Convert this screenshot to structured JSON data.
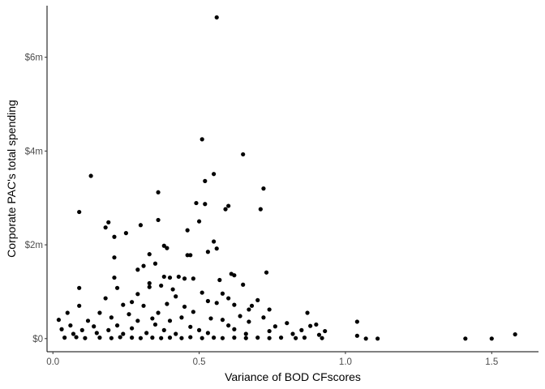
{
  "chart_data": {
    "type": "scatter",
    "title": "",
    "xlabel": "Variance of BOD CFscores",
    "ylabel": "Corporate PAC's total spending",
    "xlim": [
      -0.02,
      1.66
    ],
    "ylim": [
      -0.28,
      7.1
    ],
    "x_ticks": [
      0.0,
      0.5,
      1.0,
      1.5
    ],
    "x_tick_labels": [
      "0.0",
      "0.5",
      "1.0",
      "1.5"
    ],
    "y_ticks": [
      0,
      2,
      4,
      6
    ],
    "y_tick_labels": [
      "$0",
      "$2m",
      "$4m",
      "$6m"
    ],
    "y_unit": "millions of dollars",
    "grid": false,
    "legend": "none",
    "point_color": "#000000",
    "points": [
      [
        0.56,
        6.85
      ],
      [
        0.51,
        4.25
      ],
      [
        0.65,
        3.93
      ],
      [
        0.55,
        3.51
      ],
      [
        0.13,
        3.47
      ],
      [
        0.52,
        3.36
      ],
      [
        0.72,
        3.2
      ],
      [
        0.36,
        3.12
      ],
      [
        0.49,
        2.89
      ],
      [
        0.52,
        2.87
      ],
      [
        0.6,
        2.83
      ],
      [
        0.59,
        2.76
      ],
      [
        0.71,
        2.76
      ],
      [
        0.09,
        2.7
      ],
      [
        0.36,
        2.53
      ],
      [
        0.5,
        2.5
      ],
      [
        0.19,
        2.48
      ],
      [
        0.3,
        2.42
      ],
      [
        0.18,
        2.37
      ],
      [
        0.25,
        2.25
      ],
      [
        0.21,
        2.17
      ],
      [
        0.46,
        2.31
      ],
      [
        0.55,
        2.07
      ],
      [
        0.38,
        1.98
      ],
      [
        0.39,
        1.93
      ],
      [
        0.56,
        1.92
      ],
      [
        0.53,
        1.85
      ],
      [
        0.33,
        1.8
      ],
      [
        0.46,
        1.78
      ],
      [
        0.47,
        1.78
      ],
      [
        0.21,
        1.73
      ],
      [
        0.35,
        1.6
      ],
      [
        0.29,
        1.47
      ],
      [
        0.31,
        1.55
      ],
      [
        0.61,
        1.38
      ],
      [
        0.62,
        1.35
      ],
      [
        0.73,
        1.41
      ],
      [
        0.38,
        1.32
      ],
      [
        0.4,
        1.3
      ],
      [
        0.43,
        1.32
      ],
      [
        0.21,
        1.3
      ],
      [
        0.45,
        1.28
      ],
      [
        0.48,
        1.28
      ],
      [
        0.57,
        1.25
      ],
      [
        0.33,
        1.18
      ],
      [
        0.37,
        1.13
      ],
      [
        0.65,
        1.15
      ],
      [
        0.09,
        1.08
      ],
      [
        0.22,
        1.08
      ],
      [
        0.33,
        1.1
      ],
      [
        0.41,
        1.05
      ],
      [
        0.29,
        0.95
      ],
      [
        0.51,
        0.98
      ],
      [
        0.58,
        0.96
      ],
      [
        0.18,
        0.86
      ],
      [
        0.42,
        0.9
      ],
      [
        0.6,
        0.86
      ],
      [
        0.7,
        0.82
      ],
      [
        0.27,
        0.78
      ],
      [
        0.39,
        0.74
      ],
      [
        0.53,
        0.8
      ],
      [
        0.56,
        0.76
      ],
      [
        0.09,
        0.7
      ],
      [
        0.24,
        0.72
      ],
      [
        0.31,
        0.7
      ],
      [
        0.45,
        0.68
      ],
      [
        0.62,
        0.72
      ],
      [
        0.68,
        0.7
      ],
      [
        0.05,
        0.55
      ],
      [
        0.16,
        0.55
      ],
      [
        0.26,
        0.52
      ],
      [
        0.36,
        0.55
      ],
      [
        0.48,
        0.57
      ],
      [
        0.67,
        0.62
      ],
      [
        0.74,
        0.62
      ],
      [
        0.87,
        0.55
      ],
      [
        0.2,
        0.45
      ],
      [
        0.34,
        0.43
      ],
      [
        0.44,
        0.45
      ],
      [
        0.54,
        0.43
      ],
      [
        0.64,
        0.48
      ],
      [
        0.72,
        0.45
      ],
      [
        0.02,
        0.4
      ],
      [
        0.12,
        0.38
      ],
      [
        0.29,
        0.38
      ],
      [
        0.4,
        0.38
      ],
      [
        0.58,
        0.4
      ],
      [
        0.67,
        0.36
      ],
      [
        0.8,
        0.33
      ],
      [
        0.9,
        0.3
      ],
      [
        1.04,
        0.36
      ],
      [
        0.06,
        0.28
      ],
      [
        0.14,
        0.26
      ],
      [
        0.22,
        0.28
      ],
      [
        0.35,
        0.3
      ],
      [
        0.47,
        0.25
      ],
      [
        0.6,
        0.28
      ],
      [
        0.76,
        0.26
      ],
      [
        0.88,
        0.27
      ],
      [
        0.03,
        0.2
      ],
      [
        0.1,
        0.18
      ],
      [
        0.19,
        0.18
      ],
      [
        0.27,
        0.22
      ],
      [
        0.38,
        0.18
      ],
      [
        0.5,
        0.18
      ],
      [
        0.62,
        0.2
      ],
      [
        0.74,
        0.16
      ],
      [
        0.85,
        0.18
      ],
      [
        0.93,
        0.16
      ],
      [
        0.07,
        0.1
      ],
      [
        0.15,
        0.12
      ],
      [
        0.24,
        0.1
      ],
      [
        0.32,
        0.12
      ],
      [
        0.42,
        0.1
      ],
      [
        0.53,
        0.12
      ],
      [
        0.66,
        0.1
      ],
      [
        0.82,
        0.1
      ],
      [
        0.91,
        0.08
      ],
      [
        1.04,
        0.06
      ],
      [
        1.58,
        0.09
      ],
      [
        0.04,
        0.02
      ],
      [
        0.08,
        0.03
      ],
      [
        0.11,
        0.01
      ],
      [
        0.16,
        0.02
      ],
      [
        0.2,
        0.01
      ],
      [
        0.23,
        0.03
      ],
      [
        0.27,
        0.02
      ],
      [
        0.3,
        0.01
      ],
      [
        0.34,
        0.02
      ],
      [
        0.37,
        0.01
      ],
      [
        0.4,
        0.02
      ],
      [
        0.44,
        0.01
      ],
      [
        0.47,
        0.03
      ],
      [
        0.51,
        0.01
      ],
      [
        0.55,
        0.02
      ],
      [
        0.58,
        0.01
      ],
      [
        0.62,
        0.02
      ],
      [
        0.66,
        0.01
      ],
      [
        0.7,
        0.02
      ],
      [
        0.74,
        0.01
      ],
      [
        0.78,
        0.02
      ],
      [
        0.83,
        0.01
      ],
      [
        0.86,
        0.02
      ],
      [
        0.92,
        0.01
      ],
      [
        1.07,
        0.0
      ],
      [
        1.11,
        0.0
      ],
      [
        1.41,
        0.0
      ],
      [
        1.5,
        0.0
      ]
    ]
  }
}
